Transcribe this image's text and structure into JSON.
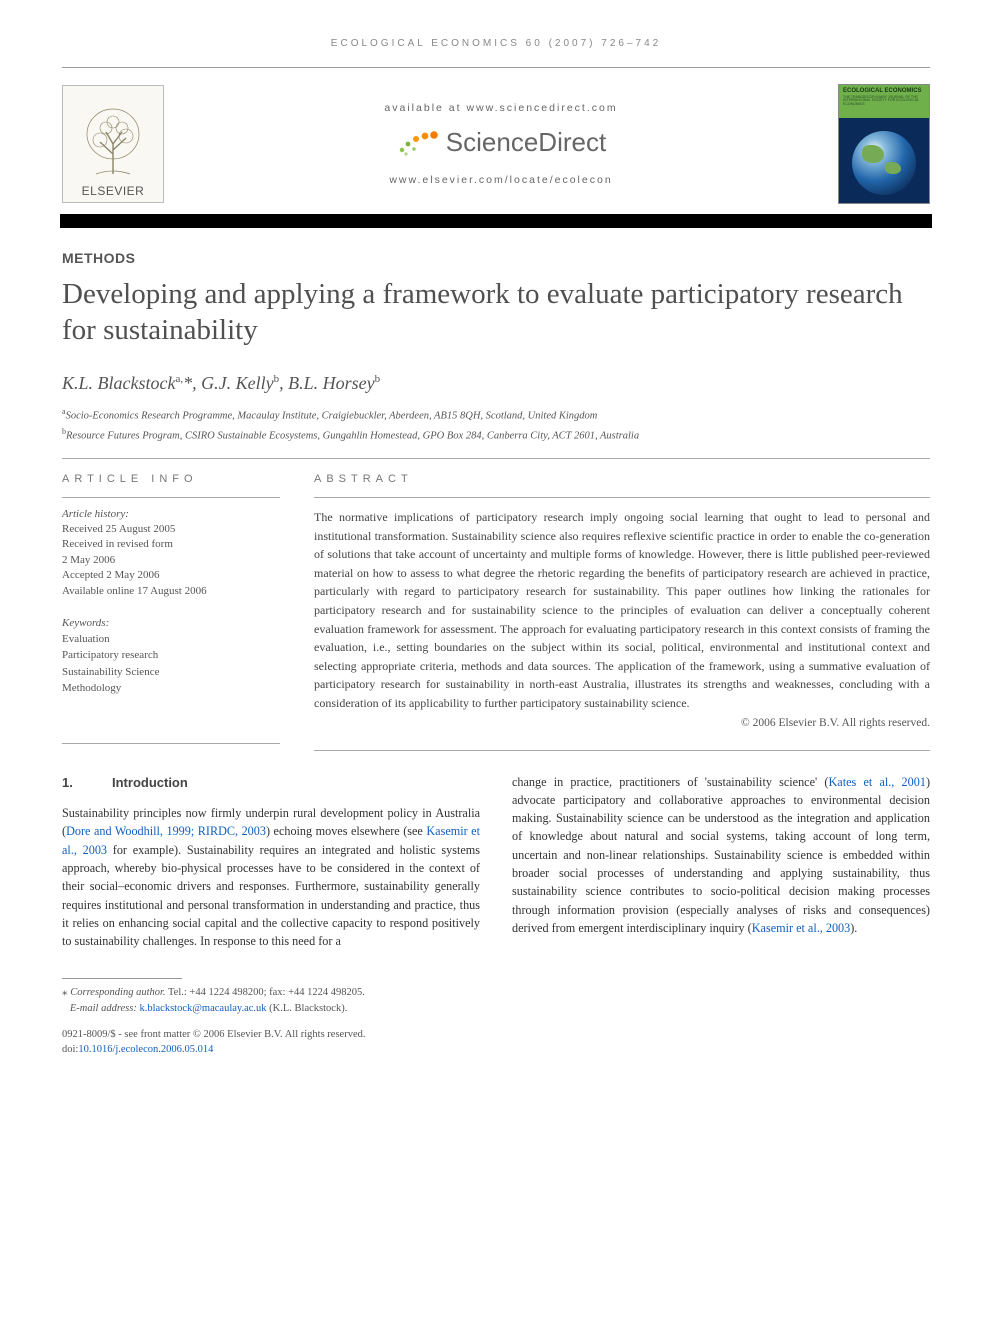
{
  "running_head": "ECOLOGICAL ECONOMICS 60 (2007) 726–742",
  "banner": {
    "publisher": "ELSEVIER",
    "available_at": "available at www.sciencedirect.com",
    "sd_brand": "ScienceDirect",
    "journal_url": "www.elsevier.com/locate/ecolecon",
    "cover_title": "ECOLOGICAL ECONOMICS",
    "cover_sub": "THE TRANSDISCIPLINARY JOURNAL OF THE INTERNATIONAL SOCIETY FOR ECOLOGICAL ECONOMICS"
  },
  "article": {
    "section": "METHODS",
    "title": "Developing and applying a framework to evaluate participatory research for sustainability",
    "authors_html": "K.L. Blackstock<sup>a,</sup>*, G.J. Kelly<sup>b</sup>, B.L. Horsey<sup>b</sup>",
    "affiliations": [
      {
        "sup": "a",
        "text": "Socio-Economics Research Programme, Macaulay Institute, Craigiebuckler, Aberdeen, AB15 8QH, Scotland, United Kingdom"
      },
      {
        "sup": "b",
        "text": "Resource Futures Program, CSIRO Sustainable Ecosystems, Gungahlin Homestead, GPO Box 284, Canberra City, ACT 2601, Australia"
      }
    ]
  },
  "info": {
    "head": "ARTICLE INFO",
    "history_label": "Article history:",
    "history": [
      "Received 25 August 2005",
      "Received in revised form",
      "2 May 2006",
      "Accepted 2 May 2006",
      "Available online 17 August 2006"
    ],
    "kw_label": "Keywords:",
    "keywords": [
      "Evaluation",
      "Participatory research",
      "Sustainability Science",
      "Methodology"
    ]
  },
  "abstract": {
    "head": "ABSTRACT",
    "text": "The normative implications of participatory research imply ongoing social learning that ought to lead to personal and institutional transformation. Sustainability science also requires reflexive scientific practice in order to enable the co-generation of solutions that take account of uncertainty and multiple forms of knowledge. However, there is little published peer-reviewed material on how to assess to what degree the rhetoric regarding the benefits of participatory research are achieved in practice, particularly with regard to participatory research for sustainability. This paper outlines how linking the rationales for participatory research and for sustainability science to the principles of evaluation can deliver a conceptually coherent evaluation framework for assessment. The approach for evaluating participatory research in this context consists of framing the evaluation, i.e., setting boundaries on the subject within its social, political, environmental and institutional context and selecting appropriate criteria, methods and data sources. The application of the framework, using a summative evaluation of participatory research for sustainability in north-east Australia, illustrates its strengths and weaknesses, concluding with a consideration of its applicability to further participatory sustainability science.",
    "copyright": "© 2006 Elsevier B.V. All rights reserved."
  },
  "body": {
    "h1_num": "1.",
    "h1_text": "Introduction",
    "col1_pre": "Sustainability principles now firmly underpin rural development policy in Australia (",
    "ref1": "Dore and Woodhill, 1999; RIRDC, 2003",
    "col1_mid1": ") echoing moves elsewhere (see ",
    "ref2": "Kasemir et al., 2003",
    "col1_post": " for example). Sustainability requires an integrated and holistic systems approach, whereby bio-physical processes have to be considered in the context of their social–economic drivers and responses. Furthermore, sustainability generally requires institutional and personal transformation in understanding and practice, thus it relies on enhancing social capital and the collective capacity to respond positively to sustainability challenges. In response to this need for a",
    "col2_pre": "change in practice, practitioners of 'sustainability science' (",
    "ref3": "Kates et al., 2001",
    "col2_mid": ") advocate participatory and collaborative approaches to environmental decision making. Sustainability science can be understood as the integration and application of knowledge about natural and social systems, taking account of long term, uncertain and non-linear relationships. Sustainability science is embedded within broader social processes of understanding and applying sustainability, thus sustainability science contributes to socio-political decision making processes through information provision (especially analyses of risks and consequences) derived from emergent interdisciplinary inquiry (",
    "ref4": "Kasemir et al., 2003",
    "col2_end": ")."
  },
  "footer": {
    "corr_label": "Corresponding author.",
    "corr_text": " Tel.: +44 1224 498200; fax: +44 1224 498205.",
    "email_label": "E-mail address: ",
    "email": "k.blackstock@macaulay.ac.uk",
    "email_suffix": " (K.L. Blackstock).",
    "front1": "0921-8009/$ - see front matter © 2006 Elsevier B.V. All rights reserved.",
    "doi_label": "doi:",
    "doi": "10.1016/j.ecolecon.2006.05.014"
  },
  "colors": {
    "link": "#1060c0",
    "text": "#333333",
    "muted": "#555555",
    "rule": "#aaaaaa"
  }
}
